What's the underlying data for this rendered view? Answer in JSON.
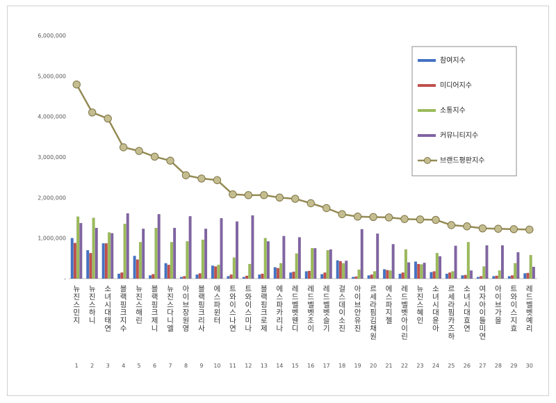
{
  "chart_data": {
    "type": "bar",
    "title": "",
    "xlabel": "",
    "ylabel": "",
    "ylim": [
      0,
      6000000
    ],
    "yticks": [
      "-",
      "1,000,000",
      "2,000,000",
      "3,000,000",
      "4,000,000",
      "5,000,000",
      "6,000,000"
    ],
    "grid": false,
    "legend_position": "top-right",
    "ranks": [
      "1",
      "2",
      "3",
      "4",
      "5",
      "6",
      "7",
      "8",
      "9",
      "10",
      "11",
      "12",
      "13",
      "14",
      "15",
      "16",
      "17",
      "18",
      "19",
      "20",
      "21",
      "22",
      "23",
      "24",
      "25",
      "26",
      "27",
      "28",
      "29",
      "30"
    ],
    "categories": [
      "뉴진스 민지",
      "뉴진스 하니",
      "소녀시대 태연",
      "블랙핑크 지수",
      "뉴진스 해린",
      "블랙핑크 제니",
      "뉴진스 다니엘",
      "아이브 장원영",
      "블랙핑크 리사",
      "에스파 윈터",
      "트와이스 나연",
      "트와이스 미나",
      "블랙핑크 로제",
      "에스파 카리나",
      "레드벨벳 웬디",
      "레드벨벳 조이",
      "레드벨벳 슬기",
      "걸스데이 소진",
      "아이브 안유진",
      "르세라핌 김채원",
      "에스파 지젤",
      "레드벨벳 아이린",
      "뉴진스 혜인",
      "소녀시대 윤아",
      "르세라핌 카즈하",
      "소녀시대 효연",
      "여자아이들 미연",
      "아이브 가을",
      "트와이스 지효",
      "레드벨벳 예리"
    ],
    "series": [
      {
        "name": "참여지수",
        "type": "bar",
        "color": "#4472c4",
        "values": [
          1000000,
          700000,
          870000,
          120000,
          560000,
          80000,
          380000,
          40000,
          100000,
          320000,
          60000,
          40000,
          100000,
          280000,
          150000,
          180000,
          110000,
          450000,
          40000,
          80000,
          230000,
          120000,
          420000,
          160000,
          120000,
          80000,
          40000,
          60000,
          60000,
          130000
        ]
      },
      {
        "name": "미디어지수",
        "type": "bar",
        "color": "#c0504d",
        "values": [
          880000,
          630000,
          870000,
          150000,
          470000,
          110000,
          340000,
          60000,
          130000,
          300000,
          100000,
          70000,
          120000,
          260000,
          170000,
          190000,
          150000,
          430000,
          50000,
          100000,
          210000,
          150000,
          360000,
          180000,
          150000,
          90000,
          60000,
          70000,
          80000,
          140000
        ]
      },
      {
        "name": "소통지수",
        "type": "bar",
        "color": "#9bbb59",
        "values": [
          1530000,
          1500000,
          1140000,
          1350000,
          900000,
          1250000,
          900000,
          920000,
          960000,
          340000,
          520000,
          360000,
          1000000,
          380000,
          620000,
          750000,
          700000,
          380000,
          220000,
          180000,
          200000,
          720000,
          350000,
          630000,
          180000,
          900000,
          300000,
          200000,
          380000,
          580000
        ]
      },
      {
        "name": "커뮤니티지수",
        "type": "bar",
        "color": "#8064a2",
        "values": [
          1370000,
          1250000,
          1120000,
          1610000,
          1230000,
          1590000,
          1250000,
          1540000,
          1230000,
          1490000,
          1410000,
          1560000,
          920000,
          1050000,
          1020000,
          750000,
          720000,
          440000,
          1220000,
          1110000,
          850000,
          400000,
          390000,
          550000,
          810000,
          200000,
          820000,
          820000,
          650000,
          290000
        ]
      },
      {
        "name": "브랜드평판지수",
        "type": "line",
        "color": "#948a54",
        "values": [
          4790000,
          4100000,
          3950000,
          3240000,
          3150000,
          3010000,
          2910000,
          2550000,
          2470000,
          2430000,
          2080000,
          2060000,
          2060000,
          2000000,
          1970000,
          1860000,
          1740000,
          1590000,
          1530000,
          1520000,
          1510000,
          1470000,
          1460000,
          1450000,
          1320000,
          1290000,
          1240000,
          1230000,
          1220000,
          1210000
        ]
      }
    ]
  }
}
